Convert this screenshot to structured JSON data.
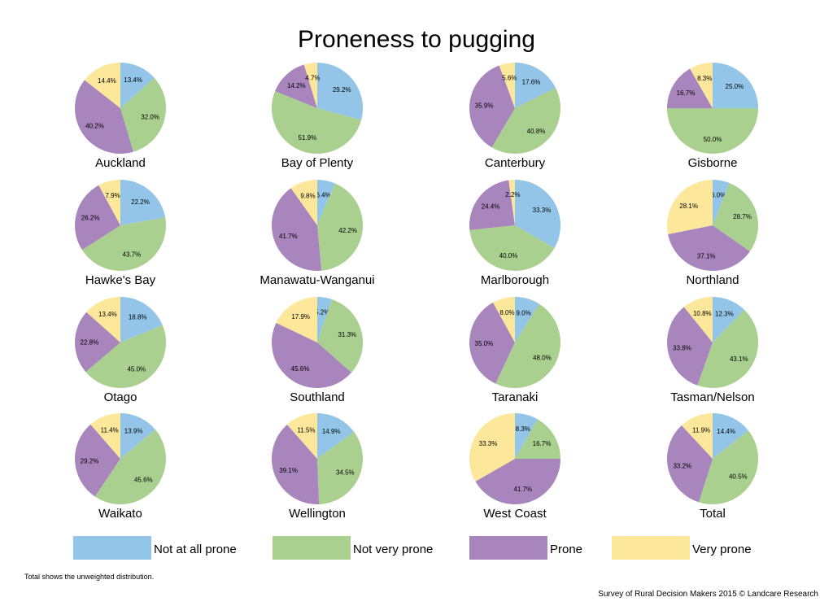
{
  "chart_data": {
    "type": "pie",
    "title": "Proneness to pugging",
    "categories": [
      "Not at all prone",
      "Not very prone",
      "Prone",
      "Very prone"
    ],
    "colors": [
      "#92c5e8",
      "#a9d08e",
      "#a885bd",
      "#fde79b"
    ],
    "legend_position": "bottom",
    "pies": [
      {
        "name": "Auckland",
        "values": [
          13.4,
          32.0,
          40.2,
          14.4
        ],
        "labels": [
          "13.4%",
          "32.0%",
          "40.2%",
          "14.4%"
        ]
      },
      {
        "name": "Bay of Plenty",
        "values": [
          29.2,
          51.9,
          14.2,
          4.7
        ],
        "labels": [
          "29.2%",
          "51.9%",
          "14.2%",
          "4.7%"
        ]
      },
      {
        "name": "Canterbury",
        "values": [
          17.6,
          40.8,
          35.9,
          5.6
        ],
        "labels": [
          "17.6%",
          "40.8%",
          "35.9%",
          "5.6%"
        ]
      },
      {
        "name": "Gisborne",
        "values": [
          25.0,
          50.0,
          16.7,
          8.3
        ],
        "labels": [
          "25.0%",
          "50.0%",
          "16.7%",
          "8.3%"
        ]
      },
      {
        "name": "Hawke's Bay",
        "values": [
          22.2,
          43.7,
          26.2,
          7.9
        ],
        "labels": [
          "22.2%",
          "43.7%",
          "26.2%",
          "7.9%"
        ]
      },
      {
        "name": "Manawatu-Wanganui",
        "values": [
          6.4,
          42.2,
          41.7,
          9.8
        ],
        "labels": [
          "6.4%",
          "42.2%",
          "41.7%",
          "9.8%"
        ]
      },
      {
        "name": "Marlborough",
        "values": [
          33.3,
          40.0,
          24.4,
          2.2
        ],
        "labels": [
          "33.3%",
          "40.0%",
          "24.4%",
          "2.2%"
        ]
      },
      {
        "name": "Northland",
        "values": [
          6.0,
          28.7,
          37.1,
          28.1
        ],
        "labels": [
          "6.0%",
          "28.7%",
          "37.1%",
          "28.1%"
        ]
      },
      {
        "name": "Otago",
        "values": [
          18.8,
          45.0,
          22.8,
          13.4
        ],
        "labels": [
          "18.8%",
          "45.0%",
          "22.8%",
          "13.4%"
        ]
      },
      {
        "name": "Southland",
        "values": [
          5.2,
          31.3,
          45.6,
          17.9
        ],
        "labels": [
          "5.2%",
          "31.3%",
          "45.6%",
          "17.9%"
        ]
      },
      {
        "name": "Taranaki",
        "values": [
          9.0,
          48.0,
          35.0,
          8.0
        ],
        "labels": [
          "9.0%",
          "48.0%",
          "35.0%",
          "8.0%"
        ]
      },
      {
        "name": "Tasman/Nelson",
        "values": [
          12.3,
          43.1,
          33.8,
          10.8
        ],
        "labels": [
          "12.3%",
          "43.1%",
          "33.8%",
          "10.8%"
        ]
      },
      {
        "name": "Waikato",
        "values": [
          13.9,
          45.6,
          29.2,
          11.4
        ],
        "labels": [
          "13.9%",
          "45.6%",
          "29.2%",
          "11.4%"
        ]
      },
      {
        "name": "Wellington",
        "values": [
          14.9,
          34.5,
          39.1,
          11.5
        ],
        "labels": [
          "14.9%",
          "34.5%",
          "39.1%",
          "11.5%"
        ]
      },
      {
        "name": "West Coast",
        "values": [
          8.3,
          16.7,
          41.7,
          33.3
        ],
        "labels": [
          "8.3%",
          "16.7%",
          "41.7%",
          "33.3%"
        ]
      },
      {
        "name": "Total",
        "values": [
          14.4,
          40.5,
          33.2,
          11.9
        ],
        "labels": [
          "14.4%",
          "40.5%",
          "33.2%",
          "11.9%"
        ]
      }
    ]
  },
  "footnote": "Total shows the unweighted distribution.",
  "source": "Survey of Rural Decision Makers 2015 © Landcare Research"
}
